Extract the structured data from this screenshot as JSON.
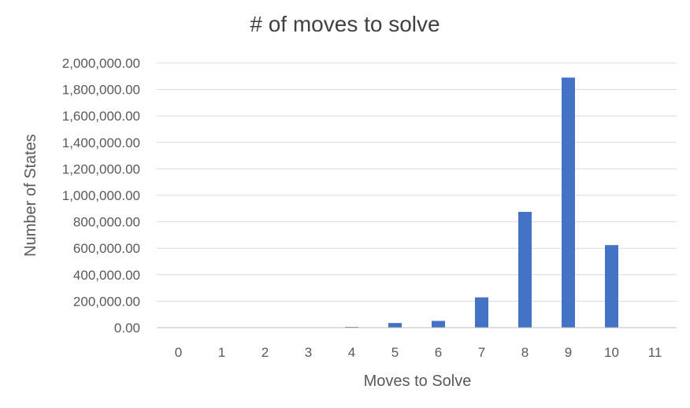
{
  "chart_data": {
    "type": "bar",
    "title": "# of moves to solve",
    "xlabel": "Moves to Solve",
    "ylabel": "Number of States",
    "categories": [
      "0",
      "1",
      "2",
      "3",
      "4",
      "5",
      "6",
      "7",
      "8",
      "9",
      "10",
      "11"
    ],
    "values": [
      1,
      13,
      116,
      853,
      5754,
      34850,
      51000,
      229000,
      875000,
      1890000,
      624000,
      0
    ],
    "ylim": [
      0,
      2000000
    ],
    "yticks": [
      "0.00",
      "200,000.00",
      "400,000.00",
      "600,000.00",
      "800,000.00",
      "1,000,000.00",
      "1,200,000.00",
      "1,400,000.00",
      "1,600,000.00",
      "1,800,000.00",
      "2,000,000.00"
    ],
    "grid": true,
    "legend": "none",
    "bar_color": "#4472c4"
  }
}
